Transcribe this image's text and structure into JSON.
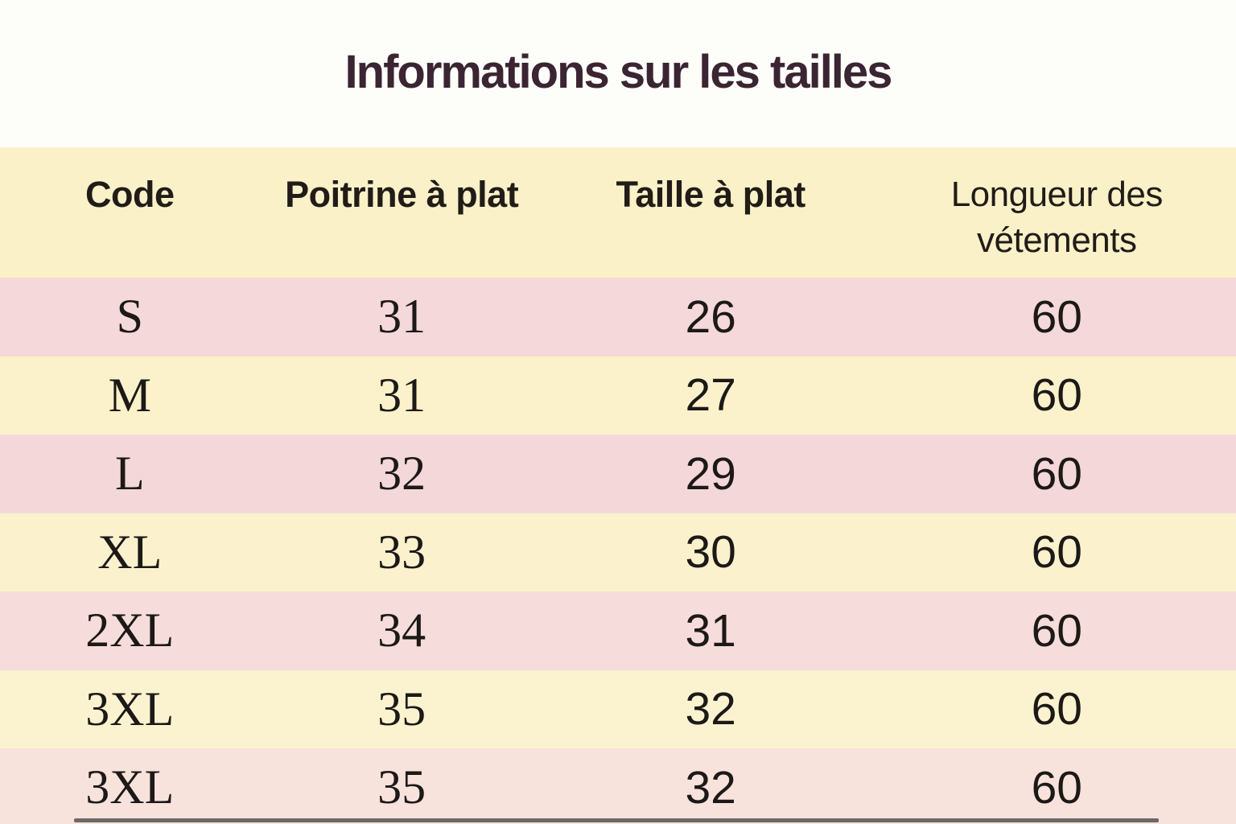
{
  "title": "Informations sur les tailles",
  "chart_data": {
    "type": "table",
    "title": "Informations sur les tailles",
    "columns": [
      "Code",
      "Poitrine à plat",
      "Taille à plat",
      "Longueur des vétements"
    ],
    "rows": [
      [
        "S",
        31,
        26,
        60
      ],
      [
        "M",
        31,
        27,
        60
      ],
      [
        "L",
        32,
        29,
        60
      ],
      [
        "XL",
        33,
        30,
        60
      ],
      [
        "2XL",
        34,
        31,
        60
      ],
      [
        "3XL",
        35,
        32,
        60
      ],
      [
        "3XL",
        35,
        32,
        60
      ]
    ],
    "layout_hints": {
      "header_position": "top",
      "row_striping": "pink-yellow-alternating",
      "grid": "off"
    }
  },
  "colors": {
    "page_bg": "#fdfdfa",
    "header_bg": "#faf1c8",
    "row_yellow": "#fbf2cc",
    "row_pink": "#f5d8da",
    "row_pink_warm": "#f8e2dc",
    "title_color": "#3b2532",
    "text_color": "#1c1917",
    "bottom_line": "#545454"
  }
}
